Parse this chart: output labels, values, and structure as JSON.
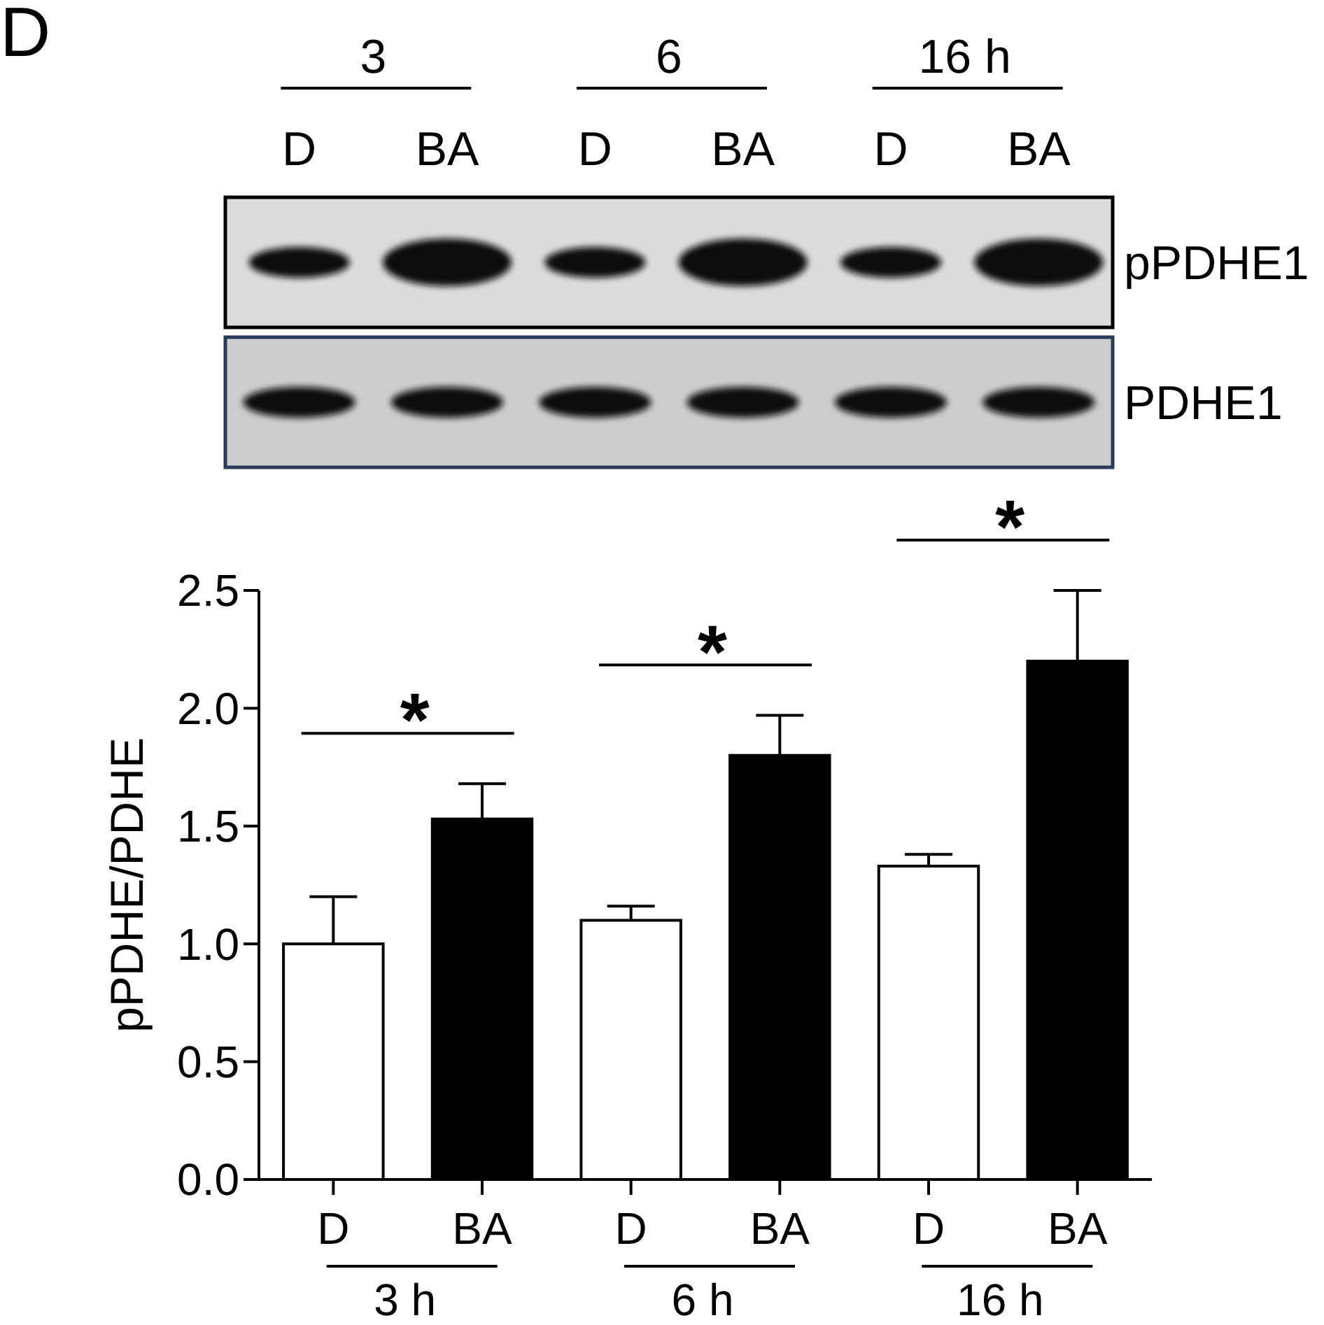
{
  "chart_data": [
    {
      "type": "other",
      "title": "D",
      "categories": [
        "D",
        "BA",
        "D",
        "BA",
        "D",
        "BA"
      ],
      "y_categories": [
        "pPDHE1",
        "PDHE1"
      ],
      "annotations": [
        "3",
        "6",
        "16 h"
      ]
    },
    {
      "type": "bar",
      "ylabel": "pPDHE/PDHE",
      "categories": [
        "3 h",
        "6 h",
        "16 h"
      ],
      "legend": "bottom",
      "series": [
        {
          "name": "D",
          "color": "#ffffff",
          "values": [
            1.0,
            1.1,
            1.33
          ],
          "errors": [
            [
              1.0,
              1.2
            ],
            [
              1.1,
              1.16
            ],
            [
              1.33,
              1.38
            ]
          ]
        },
        {
          "name": "BA",
          "color": "#000000",
          "values": [
            1.53,
            1.8,
            2.2
          ],
          "errors": [
            [
              1.53,
              1.68
            ],
            [
              1.8,
              1.97
            ],
            [
              2.2,
              2.5
            ]
          ]
        }
      ],
      "ylim": [
        0,
        2.5
      ],
      "yticks": [
        {
          "value": 0,
          "label": "0.0"
        },
        0.5,
        {
          "value": 1,
          "label": "1.0"
        },
        1.5,
        {
          "value": 2,
          "label": "2.0"
        },
        2.5
      ],
      "annotations": [
        "*",
        "*",
        "*"
      ]
    }
  ]
}
